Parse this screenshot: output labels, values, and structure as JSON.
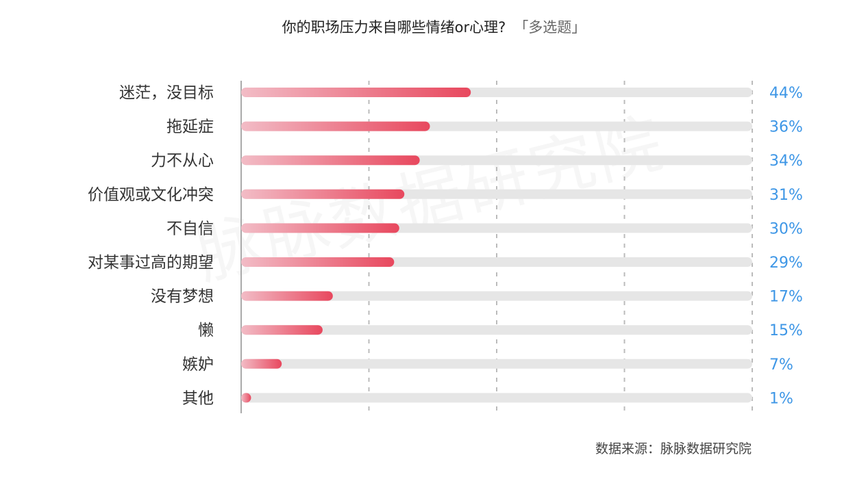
{
  "header": {
    "title": "你的职场压力来自哪些情绪or心理?",
    "note": "「多选题」"
  },
  "watermark": "脉脉数据研究院",
  "footer": {
    "source": "数据来源：脉脉数据研究院"
  },
  "colors": {
    "bar_start": "#f2bcc6",
    "bar_end": "#e8485e",
    "track": "#e6e6e6",
    "value_text": "#3d96e6",
    "label_text": "#333333",
    "grid": "#bbbbbb"
  },
  "chart_data": {
    "type": "bar",
    "orientation": "horizontal",
    "categories": [
      "迷茫，没目标",
      "拖延症",
      "力不从心",
      "价值观或文化冲突",
      "不自信",
      "对某事过高的期望",
      "没有梦想",
      "懒",
      "嫉妒",
      "其他"
    ],
    "values": [
      44,
      36,
      34,
      31,
      30,
      29,
      17,
      15,
      7,
      1
    ],
    "value_labels": [
      "44%",
      "36%",
      "34%",
      "31%",
      "30%",
      "29%",
      "17%",
      "15%",
      "7%",
      "1%"
    ],
    "xlim": [
      0,
      100
    ],
    "grid": true,
    "legend": "none"
  }
}
